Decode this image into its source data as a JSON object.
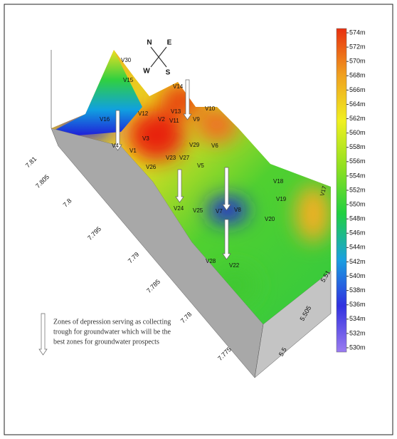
{
  "chart_data": {
    "type": "surface",
    "colorbar": {
      "zlim": [
        529.4,
        574.6
      ],
      "colormap": [
        "#9b7cf0",
        "#3030e0",
        "#1aa0e0",
        "#20d040",
        "#90e020",
        "#f0f020",
        "#f0a020",
        "#e83010"
      ],
      "ticks": [
        {
          "value": 574,
          "label": "574m"
        },
        {
          "value": 572,
          "label": "572m"
        },
        {
          "value": 570,
          "label": "570m"
        },
        {
          "value": 568,
          "label": "568m"
        },
        {
          "value": 566,
          "label": "566m"
        },
        {
          "value": 564,
          "label": "564m"
        },
        {
          "value": 562,
          "label": "562m"
        },
        {
          "value": 560,
          "label": "560m"
        },
        {
          "value": 558,
          "label": "558m"
        },
        {
          "value": 556,
          "label": "556m"
        },
        {
          "value": 554,
          "label": "554m"
        },
        {
          "value": 552,
          "label": "552m"
        },
        {
          "value": 550,
          "label": "550m"
        },
        {
          "value": 548,
          "label": "548m"
        },
        {
          "value": 546,
          "label": "546m"
        },
        {
          "value": 544,
          "label": "544m"
        },
        {
          "value": 542,
          "label": "542m"
        },
        {
          "value": 540,
          "label": "540m"
        },
        {
          "value": 538,
          "label": "538m"
        },
        {
          "value": 536,
          "label": "536m"
        },
        {
          "value": 534,
          "label": "534m"
        },
        {
          "value": 532,
          "label": "532m"
        },
        {
          "value": 530,
          "label": "530m"
        }
      ]
    },
    "xticks": [
      7.81,
      7.805,
      7.8,
      7.795,
      7.79,
      7.785,
      7.78,
      7.775
    ],
    "yticks": [
      5.5,
      5.505,
      5.51
    ],
    "points": [
      "V30",
      "V15",
      "V16",
      "V14",
      "V13",
      "V11",
      "V12",
      "V2",
      "V10",
      "V9",
      "V29",
      "V3",
      "V4",
      "V1",
      "V26",
      "V23",
      "V27",
      "V5",
      "V6",
      "V18",
      "V19",
      "V20",
      "V17",
      "V24",
      "V25",
      "V7",
      "V8",
      "V28",
      "V22"
    ],
    "compass": [
      "N",
      "E",
      "W",
      "S"
    ],
    "legend": [
      "Zones of depression serving as collecting",
      "trough for groundwater which will be the",
      "best zones for groundwater prospects"
    ]
  }
}
